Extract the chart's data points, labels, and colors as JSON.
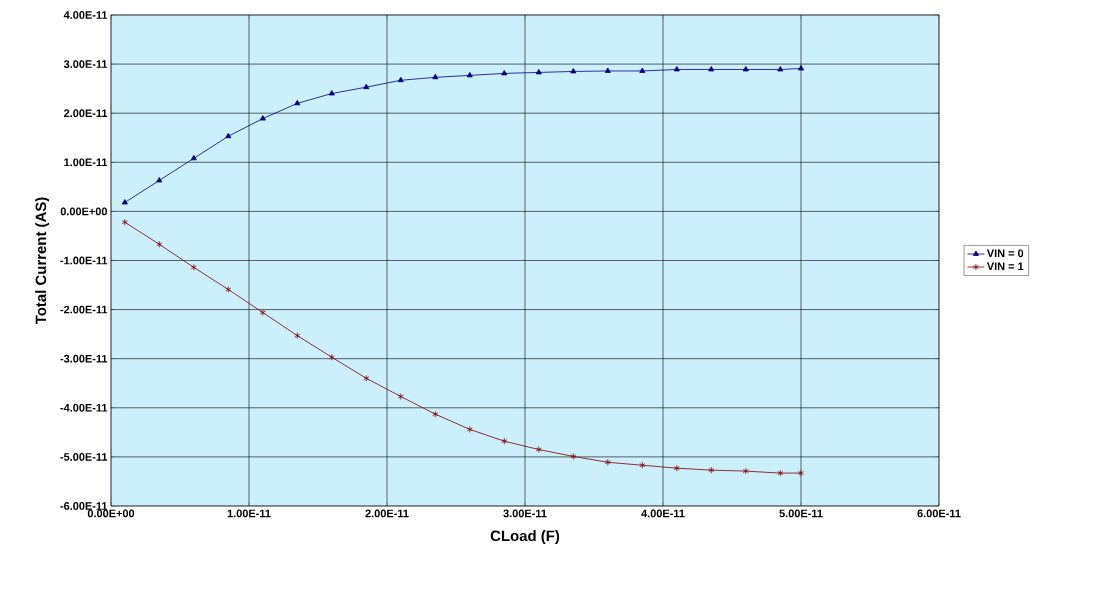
{
  "chart_data": {
    "type": "line",
    "xlabel": "CLoad (F)",
    "ylabel": "Total Current (AS)",
    "x": [
      1e-12,
      3.5e-12,
      6e-12,
      8.5e-12,
      1.1e-11,
      1.35e-11,
      1.6e-11,
      1.85e-11,
      2.1e-11,
      2.35e-11,
      2.6e-11,
      2.85e-11,
      3.1e-11,
      3.35e-11,
      3.6e-11,
      3.85e-11,
      4.1e-11,
      4.35e-11,
      4.6e-11,
      4.85e-11,
      5e-11
    ],
    "series": [
      {
        "name": "VIN = 0",
        "color": "#000080",
        "marker": "triangle",
        "values": [
          1.8e-12,
          6.3e-12,
          1.08e-11,
          1.53e-11,
          1.89e-11,
          2.2e-11,
          2.4e-11,
          2.53e-11,
          2.67e-11,
          2.73e-11,
          2.77e-11,
          2.81e-11,
          2.83e-11,
          2.85e-11,
          2.86e-11,
          2.86e-11,
          2.89e-11,
          2.89e-11,
          2.89e-11,
          2.89e-11,
          2.91e-11
        ]
      },
      {
        "name": "VIN = 1",
        "color": "#800000",
        "marker": "cross",
        "values": [
          -2.2e-12,
          -6.7e-12,
          -1.14e-11,
          -1.59e-11,
          -2.06e-11,
          -2.53e-11,
          -2.97e-11,
          -3.4e-11,
          -3.77e-11,
          -4.13e-11,
          -4.44e-11,
          -4.68e-11,
          -4.85e-11,
          -4.99e-11,
          -5.11e-11,
          -5.17e-11,
          -5.23e-11,
          -5.27e-11,
          -5.29e-11,
          -5.33e-11,
          -5.33e-11
        ]
      }
    ],
    "xlim": [
      0,
      6e-11
    ],
    "ylim": [
      -6e-11,
      4e-11
    ],
    "xticks": [
      {
        "value": 0,
        "label": "0.00E+00"
      },
      {
        "value": 1e-11,
        "label": "1.00E-11"
      },
      {
        "value": 2e-11,
        "label": "2.00E-11"
      },
      {
        "value": 3e-11,
        "label": "3.00E-11"
      },
      {
        "value": 4e-11,
        "label": "4.00E-11"
      },
      {
        "value": 5e-11,
        "label": "5.00E-11"
      },
      {
        "value": 6e-11,
        "label": "6.00E-11"
      }
    ],
    "yticks": [
      {
        "value": -6e-11,
        "label": "-6.00E-11"
      },
      {
        "value": -5e-11,
        "label": "-5.00E-11"
      },
      {
        "value": -4e-11,
        "label": "-4.00E-11"
      },
      {
        "value": -3e-11,
        "label": "-3.00E-11"
      },
      {
        "value": -2e-11,
        "label": "-2.00E-11"
      },
      {
        "value": -1e-11,
        "label": "-1.00E-11"
      },
      {
        "value": 0,
        "label": "0.00E+00"
      },
      {
        "value": 1e-11,
        "label": "1.00E-11"
      },
      {
        "value": 2e-11,
        "label": "2.00E-11"
      },
      {
        "value": 3e-11,
        "label": "3.00E-11"
      },
      {
        "value": 4e-11,
        "label": "4.00E-11"
      }
    ],
    "grid": true,
    "legend": "right",
    "line_style": "solid"
  }
}
